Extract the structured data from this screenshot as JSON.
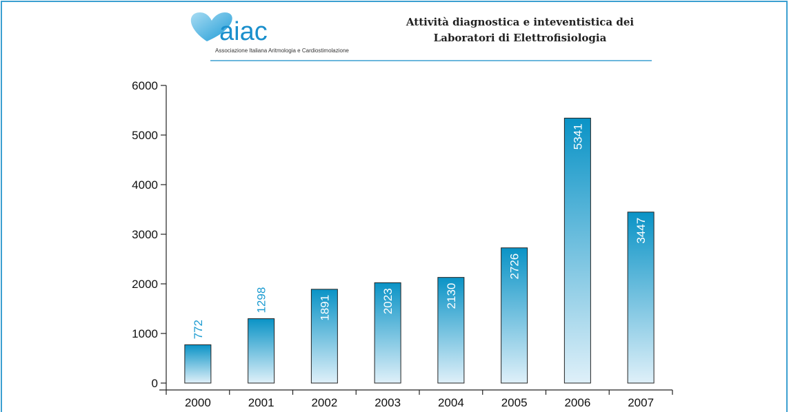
{
  "chart_data": {
    "type": "bar",
    "title": [
      "Attività diagnostica e inteventistica dei",
      "Laboratori di Elettrofisiologia"
    ],
    "logo": {
      "text": "aiac",
      "subtitle": "Associazione Italiana Aritmologia e Cardiostimolazione"
    },
    "categories": [
      "2000",
      "2001",
      "2002",
      "2003",
      "2004",
      "2005",
      "2006",
      "2007"
    ],
    "values": [
      772,
      1298,
      1891,
      2023,
      2130,
      2726,
      5341,
      3447
    ],
    "color": "#0a93c6",
    "ylim": [
      0,
      6000
    ],
    "yticks": [
      0,
      1000,
      2000,
      3000,
      4000,
      5000,
      6000
    ],
    "grid": false
  }
}
